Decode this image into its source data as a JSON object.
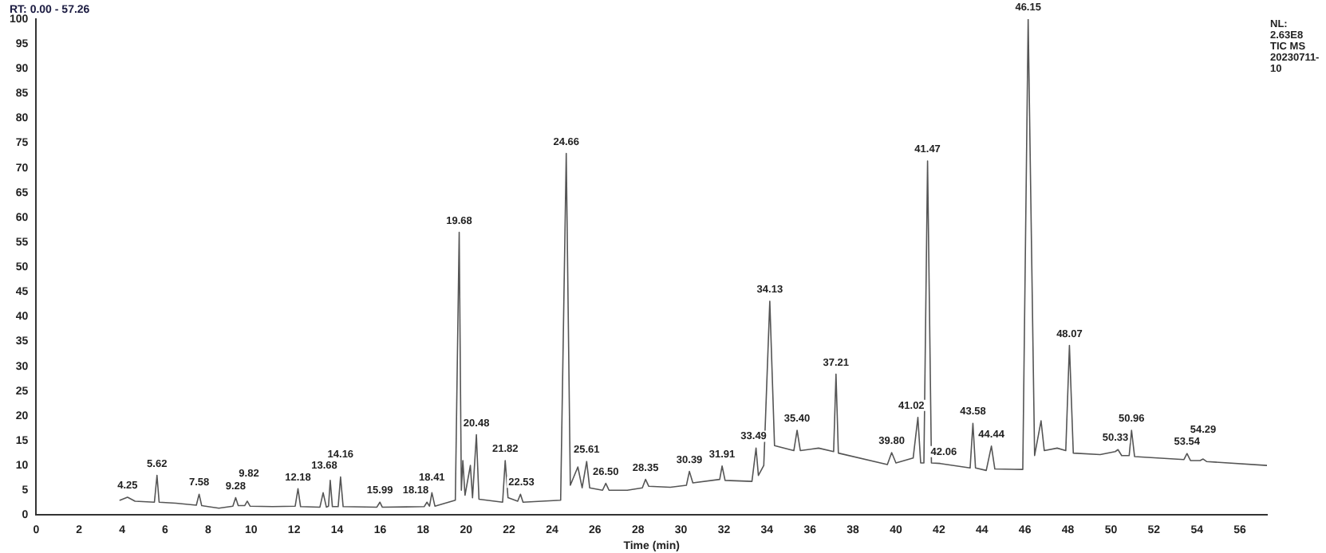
{
  "chart_data": {
    "type": "line",
    "title": "RT: 0.00 - 57.26",
    "xlabel": "Time (min)",
    "xlim": [
      0,
      57.26
    ],
    "xticks": [
      0,
      2,
      4,
      6,
      8,
      10,
      12,
      14,
      16,
      18,
      20,
      22,
      24,
      26,
      28,
      30,
      32,
      34,
      36,
      38,
      40,
      42,
      44,
      46,
      48,
      50,
      52,
      54,
      56
    ],
    "ylim": [
      0,
      100
    ],
    "yticks": [
      0,
      5,
      10,
      15,
      20,
      25,
      30,
      35,
      40,
      45,
      50,
      55,
      60,
      65,
      70,
      75,
      80,
      85,
      90,
      95,
      100
    ],
    "grid": false,
    "legend": false,
    "marker": "none",
    "series": [
      {
        "color": "#555555",
        "x": [
          3.9,
          4.25,
          4.6,
          5.5,
          5.62,
          5.72,
          6.5,
          7.45,
          7.58,
          7.7,
          8.5,
          9.15,
          9.28,
          9.4,
          9.7,
          9.82,
          9.95,
          11,
          12.05,
          12.18,
          12.3,
          13.2,
          13.35,
          13.5,
          13.6,
          13.68,
          13.78,
          14.05,
          14.16,
          14.28,
          15.85,
          15.99,
          16.1,
          18.05,
          18.18,
          18.3,
          18.41,
          18.55,
          19.5,
          19.68,
          19.78,
          19.85,
          19.95,
          20.2,
          20.3,
          20.48,
          20.6,
          21.7,
          21.82,
          21.95,
          22.4,
          22.53,
          22.65,
          24.4,
          24.66,
          24.85,
          25.2,
          25.4,
          25.61,
          25.75,
          26.35,
          26.5,
          26.65,
          27.5,
          28.2,
          28.35,
          28.5,
          29.5,
          30.25,
          30.39,
          30.55,
          31.8,
          31.91,
          32.05,
          33.3,
          33.49,
          33.6,
          33.85,
          34.13,
          34.35,
          35.25,
          35.4,
          35.55,
          36.4,
          37.1,
          37.21,
          37.32,
          39.6,
          39.8,
          40,
          40.8,
          41.02,
          41.15,
          41.3,
          41.47,
          41.65,
          42.06,
          43.45,
          43.58,
          43.7,
          44.2,
          44.44,
          44.6,
          45.9,
          46.15,
          46.45,
          46.75,
          46.9,
          47.5,
          47.9,
          48.07,
          48.25,
          49.5,
          50.2,
          50.33,
          50.5,
          50.85,
          50.96,
          51.1,
          53.4,
          53.54,
          53.7,
          54.15,
          54.29,
          54.45,
          57.26
        ],
        "values": [
          3,
          3.6,
          2.8,
          2.6,
          8,
          2.6,
          2.4,
          2,
          4.2,
          1.9,
          1.4,
          1.8,
          3.5,
          1.9,
          1.9,
          2.8,
          1.8,
          1.7,
          1.8,
          5.3,
          1.7,
          1.6,
          4.5,
          1.6,
          1.8,
          7,
          1.7,
          1.7,
          7.7,
          1.7,
          1.6,
          2.6,
          1.6,
          1.7,
          2.6,
          1.8,
          4.5,
          1.8,
          3,
          57,
          5,
          11,
          4,
          10,
          3.5,
          16.2,
          3.2,
          2.6,
          11,
          3.5,
          2.8,
          4.2,
          2.6,
          3,
          72.9,
          6,
          9.7,
          5.5,
          10.8,
          5.5,
          5,
          6.4,
          5,
          5,
          5.5,
          7.2,
          5.8,
          5.6,
          6,
          8.8,
          6.5,
          7.2,
          9.9,
          7,
          6.8,
          13.5,
          8,
          10,
          43.1,
          14,
          13,
          17.1,
          13,
          13.5,
          12.8,
          28.4,
          12.5,
          10.2,
          12.6,
          10.5,
          11.5,
          19.7,
          10.5,
          10.5,
          71.4,
          10.5,
          10.4,
          9.5,
          18.5,
          9.5,
          9,
          13.9,
          9.3,
          9.2,
          100,
          12,
          19,
          13,
          13.5,
          13,
          34.2,
          12.5,
          12.2,
          12.8,
          13.2,
          12,
          12,
          17.1,
          11.8,
          11.2,
          12.4,
          11,
          11,
          11.3,
          10.8,
          10
        ]
      }
    ],
    "annotations": [
      "NL:",
      "2.63E8",
      "TIC MS",
      "20230711-10",
      {
        "text": "4.25",
        "x": 4.25,
        "y": 3.6
      },
      {
        "text": "5.62",
        "x": 5.62,
        "y": 8
      },
      {
        "text": "7.58",
        "x": 7.58,
        "y": 4.2
      },
      {
        "text": "9.28",
        "x": 9.28,
        "y": 3.5
      },
      {
        "text": "9.82",
        "x": 9.82,
        "y": 2.8
      },
      {
        "text": "12.18",
        "x": 12.18,
        "y": 5.3
      },
      {
        "text": "13.68",
        "x": 13.68,
        "y": 7
      },
      {
        "text": "14.16",
        "x": 14.16,
        "y": 7.7
      },
      {
        "text": "15.99",
        "x": 15.99,
        "y": 2.6
      },
      {
        "text": "18.18",
        "x": 18.18,
        "y": 2.6
      },
      {
        "text": "18.41",
        "x": 18.41,
        "y": 4.5
      },
      {
        "text": "19.68",
        "x": 19.68,
        "y": 57
      },
      {
        "text": "20.48",
        "x": 20.48,
        "y": 16.2
      },
      {
        "text": "21.82",
        "x": 21.82,
        "y": 11
      },
      {
        "text": "22.53",
        "x": 22.53,
        "y": 4.2
      },
      {
        "text": "24.66",
        "x": 24.66,
        "y": 72.9
      },
      {
        "text": "25.61",
        "x": 25.61,
        "y": 10.8
      },
      {
        "text": "26.50",
        "x": 26.5,
        "y": 6.4
      },
      {
        "text": "28.35",
        "x": 28.35,
        "y": 7.2
      },
      {
        "text": "30.39",
        "x": 30.39,
        "y": 8.8
      },
      {
        "text": "31.91",
        "x": 31.91,
        "y": 9.9
      },
      {
        "text": "33.49",
        "x": 33.49,
        "y": 13.5
      },
      {
        "text": "34.13",
        "x": 34.13,
        "y": 43.1
      },
      {
        "text": "35.40",
        "x": 35.4,
        "y": 17.1
      },
      {
        "text": "37.21",
        "x": 37.21,
        "y": 28.4
      },
      {
        "text": "39.80",
        "x": 39.8,
        "y": 12.6
      },
      {
        "text": "41.02",
        "x": 41.02,
        "y": 19.7
      },
      {
        "text": "41.47",
        "x": 41.47,
        "y": 71.4
      },
      {
        "text": "42.06",
        "x": 42.06,
        "y": 10.4
      },
      {
        "text": "43.58",
        "x": 43.58,
        "y": 18.5
      },
      {
        "text": "44.44",
        "x": 44.44,
        "y": 13.9
      },
      {
        "text": "46.15",
        "x": 46.15,
        "y": 100
      },
      {
        "text": "48.07",
        "x": 48.07,
        "y": 34.2
      },
      {
        "text": "50.33",
        "x": 50.33,
        "y": 13.2
      },
      {
        "text": "50.96",
        "x": 50.96,
        "y": 17.1
      },
      {
        "text": "53.54",
        "x": 53.54,
        "y": 12.4
      },
      {
        "text": "54.29",
        "x": 54.29,
        "y": 11.3
      }
    ]
  }
}
